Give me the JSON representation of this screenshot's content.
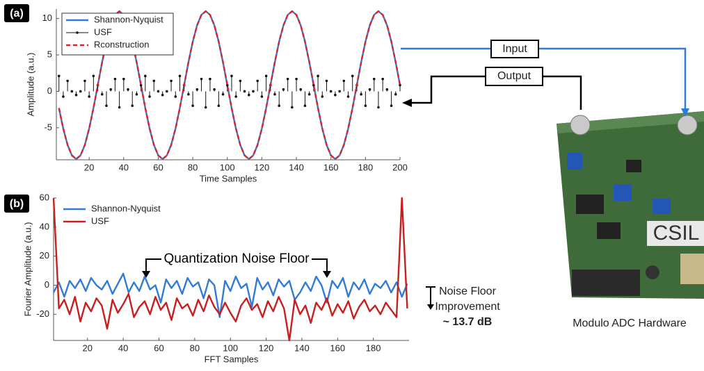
{
  "chart_data": [
    {
      "type": "line",
      "panel_label": "(a)",
      "x_label": "Time Samples",
      "y_label": "Amplitude (a.u.)",
      "x": [
        2.5,
        5,
        7.5,
        10,
        12.5,
        15,
        17.5,
        20,
        22.5,
        25,
        27.5,
        30,
        32.5,
        35,
        37.5,
        40,
        42.5,
        45,
        47.5,
        50,
        52.5,
        55,
        57.5,
        60,
        62.5,
        65,
        67.5,
        70,
        72.5,
        75,
        77.5,
        80,
        82.5,
        85,
        87.5,
        90,
        92.5,
        95,
        97.5,
        100,
        102.5,
        105,
        107.5,
        110,
        112.5,
        115,
        117.5,
        120,
        122.5,
        125,
        127.5,
        130,
        132.5,
        135,
        137.5,
        140,
        142.5,
        145,
        147.5,
        150,
        152.5,
        155,
        157.5,
        160,
        162.5,
        165,
        167.5,
        170,
        172.5,
        175,
        177.5,
        180,
        182.5,
        185,
        187.5,
        190,
        192.5,
        195,
        197.5,
        200
      ],
      "series": [
        {
          "name": "Shannon-Nyquist",
          "color": "#2f7bd6",
          "values": [
            -2.29,
            -5.12,
            -7.36,
            -8.8,
            -9.3,
            -8.8,
            -7.36,
            -5.12,
            -2.29,
            0.85,
            3.99,
            6.82,
            9.06,
            10.5,
            11,
            10.5,
            9.06,
            6.82,
            3.99,
            0.85,
            -2.29,
            -5.12,
            -7.36,
            -8.8,
            -9.3,
            -8.8,
            -7.36,
            -5.12,
            -2.29,
            0.85,
            3.99,
            6.82,
            9.06,
            10.5,
            11,
            10.5,
            9.06,
            6.82,
            3.99,
            0.85,
            -2.29,
            -5.12,
            -7.36,
            -8.8,
            -9.3,
            -8.8,
            -7.36,
            -5.12,
            -2.29,
            0.85,
            3.99,
            6.82,
            9.06,
            10.5,
            11,
            10.5,
            9.06,
            6.82,
            3.99,
            0.85,
            -2.29,
            -5.12,
            -7.36,
            -8.8,
            -9.3,
            -8.8,
            -7.36,
            -5.12,
            -2.29,
            0.85,
            3.99,
            6.82,
            9.06,
            10.5,
            11,
            10.5,
            9.06,
            6.82,
            3.99,
            0.85
          ]
        },
        {
          "name": "USF",
          "color": "#111111",
          "kind": "stem",
          "values": [
            2.11,
            -0.72,
            1.44,
            0,
            -0.5,
            0,
            1.44,
            -0.72,
            2.11,
            0.85,
            -0.41,
            -1.98,
            0.26,
            1.7,
            -2.2,
            1.7,
            0.26,
            -1.98,
            -0.41,
            0.85,
            2.11,
            -0.72,
            1.44,
            0,
            -0.5,
            0,
            1.44,
            -0.72,
            2.11,
            0.85,
            -0.41,
            -1.98,
            0.26,
            1.7,
            -2.2,
            1.7,
            0.26,
            -1.98,
            -0.41,
            0.85,
            2.11,
            -0.72,
            1.44,
            0,
            -0.5,
            0,
            1.44,
            -0.72,
            2.11,
            0.85,
            -0.41,
            -1.98,
            0.26,
            1.7,
            -2.2,
            1.7,
            0.26,
            -1.98,
            -0.41,
            0.85,
            2.11,
            -0.72,
            1.44,
            0,
            -0.5,
            0,
            1.44,
            -0.72,
            2.11,
            0.85,
            -0.41,
            -1.98,
            0.26,
            1.7,
            -2.2,
            1.7,
            0.26,
            -1.98,
            -0.41,
            0.85
          ]
        },
        {
          "name": "Rconstruction",
          "color": "#e0202a",
          "dashed": true,
          "values": [
            -2.29,
            -5.12,
            -7.36,
            -8.8,
            -9.3,
            -8.8,
            -7.36,
            -5.12,
            -2.29,
            0.85,
            3.99,
            6.82,
            9.06,
            10.5,
            11,
            10.5,
            9.06,
            6.82,
            3.99,
            0.85,
            -2.29,
            -5.12,
            -7.36,
            -8.8,
            -9.3,
            -8.8,
            -7.36,
            -5.12,
            -2.29,
            0.85,
            3.99,
            6.82,
            9.06,
            10.5,
            11,
            10.5,
            9.06,
            6.82,
            3.99,
            0.85,
            -2.29,
            -5.12,
            -7.36,
            -8.8,
            -9.3,
            -8.8,
            -7.36,
            -5.12,
            -2.29,
            0.85,
            3.99,
            6.82,
            9.06,
            10.5,
            11,
            10.5,
            9.06,
            6.82,
            3.99,
            0.85,
            -2.29,
            -5.12,
            -7.36,
            -8.8,
            -9.3,
            -8.8,
            -7.36,
            -5.12,
            -2.29,
            0.85,
            3.99,
            6.82,
            9.06,
            10.5,
            11,
            10.5,
            9.06,
            6.82,
            3.99,
            0.85
          ]
        }
      ],
      "xlim": [
        1,
        200
      ],
      "ylim": [
        -9.4,
        11.3
      ],
      "xticks": [
        20,
        40,
        60,
        80,
        100,
        120,
        140,
        160,
        180,
        200
      ],
      "yticks": [
        -5,
        0,
        5,
        10
      ],
      "grid": false,
      "legend": "upper left"
    },
    {
      "type": "line",
      "panel_label": "(b)",
      "x_label": "FFT Samples",
      "y_label": "Fourier Amplitude (a.u.)",
      "x": [
        1,
        4,
        7,
        10,
        13,
        16,
        19,
        22,
        25,
        28,
        31,
        34,
        37,
        40,
        43,
        46,
        49,
        52,
        55,
        58,
        61,
        64,
        67,
        70,
        73,
        76,
        79,
        82,
        85,
        88,
        91,
        94,
        97,
        100,
        103,
        106,
        109,
        112,
        115,
        118,
        121,
        124,
        127,
        130,
        133,
        136,
        139,
        142,
        145,
        148,
        151,
        154,
        157,
        160,
        163,
        166,
        169,
        172,
        175,
        178,
        181,
        184,
        187,
        190,
        193,
        196,
        199
      ],
      "series": [
        {
          "name": "Shannon-Nyquist",
          "color": "#2f7bd6",
          "values": [
            -5,
            2,
            -8,
            3,
            -2,
            4,
            -4,
            5,
            0,
            -3,
            3,
            -6,
            1,
            8,
            -5,
            2,
            -4,
            6,
            -3,
            0,
            -12,
            4,
            -2,
            3,
            -6,
            5,
            -1,
            2,
            -9,
            4,
            0,
            -22,
            3,
            -4,
            6,
            -2,
            1,
            -15,
            5,
            -3,
            2,
            -7,
            4,
            -1,
            3,
            -10,
            -5,
            2,
            -4,
            6,
            0,
            -12,
            3,
            -2,
            5,
            -8,
            2,
            -3,
            4,
            -6,
            1,
            -2,
            3,
            -5,
            2,
            -8,
            1
          ]
        },
        {
          "name": "USF",
          "color": "#c81e1e",
          "values": [
            60,
            -16,
            -10,
            -20,
            -8,
            -25,
            -12,
            -18,
            -9,
            -14,
            -30,
            -10,
            -19,
            -13,
            -6,
            -22,
            -15,
            -11,
            -20,
            -8,
            -17,
            -12,
            -24,
            -9,
            -16,
            -13,
            -21,
            -10,
            -18,
            -7,
            -15,
            -20,
            -12,
            -19,
            -25,
            -14,
            -9,
            -17,
            -13,
            -22,
            -11,
            -18,
            -8,
            -16,
            -38,
            -10,
            -20,
            -14,
            -26,
            -12,
            -17,
            -9,
            -21,
            -13,
            -19,
            -11,
            -23,
            -15,
            -10,
            -18,
            -14,
            -20,
            -12,
            -17,
            -22,
            60,
            -16
          ]
        }
      ],
      "xlim": [
        1,
        200
      ],
      "ylim": [
        -38,
        60
      ],
      "xticks": [
        20,
        40,
        60,
        80,
        100,
        120,
        140,
        160,
        180
      ],
      "yticks": [
        -20,
        0,
        20,
        40,
        60
      ],
      "grid": false,
      "legend": "upper left",
      "annotation": "Quantization Noise Floor",
      "improvement_label": [
        "Noise Floor",
        "Improvement"
      ],
      "improvement_value": "~ 13.7 dB"
    }
  ],
  "hardware": {
    "input": "Input",
    "output": "Output",
    "caption": "Modulo ADC Hardware"
  }
}
